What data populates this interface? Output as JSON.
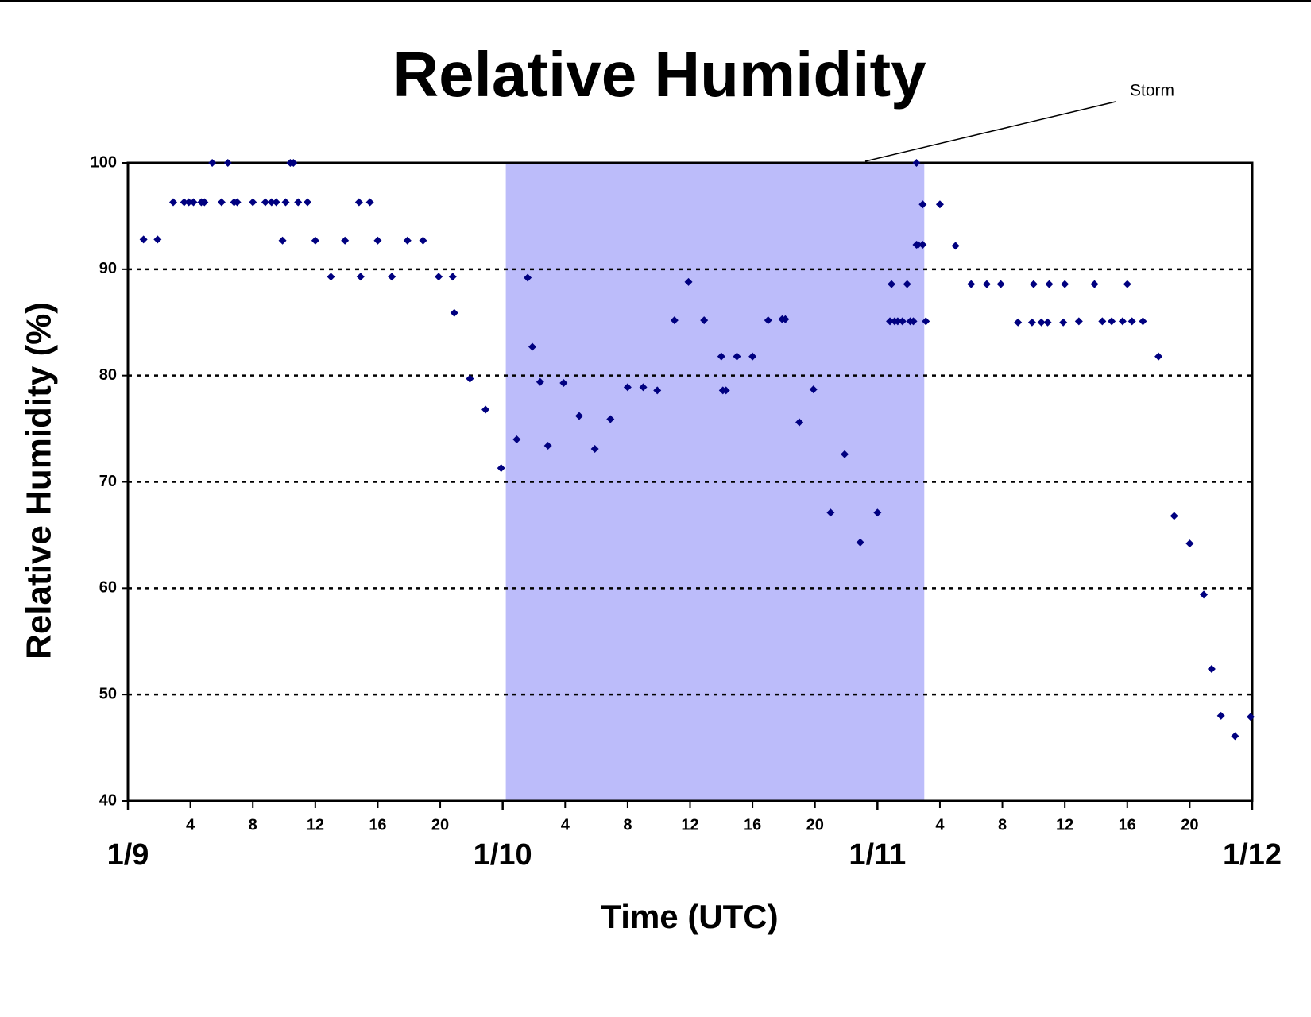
{
  "chart_data": {
    "type": "scatter",
    "title": "Relative Humidity",
    "xlabel": "Time (UTC)",
    "ylabel": "Relative Humidity (%)",
    "annotation": "Storm",
    "shaded_xlim": [
      24.2,
      51.0
    ],
    "shade_color": "#bcbcfa",
    "grid": true,
    "xlim": [
      0,
      72
    ],
    "ylim": [
      40,
      100
    ],
    "yticks": [
      40,
      50,
      60,
      70,
      80,
      90,
      100
    ],
    "xticks": [
      {
        "value": 4,
        "label": "4"
      },
      {
        "value": 8,
        "label": "8"
      },
      {
        "value": 12,
        "label": "12"
      },
      {
        "value": 16,
        "label": "16"
      },
      {
        "value": 20,
        "label": "20"
      },
      {
        "value": 28,
        "label": "4"
      },
      {
        "value": 32,
        "label": "8"
      },
      {
        "value": 36,
        "label": "12"
      },
      {
        "value": 40,
        "label": "16"
      },
      {
        "value": 44,
        "label": "20"
      },
      {
        "value": 52,
        "label": "4"
      },
      {
        "value": 56,
        "label": "8"
      },
      {
        "value": 60,
        "label": "12"
      },
      {
        "value": 64,
        "label": "16"
      },
      {
        "value": 68,
        "label": "20"
      }
    ],
    "xticks_major": [
      {
        "value": 0,
        "label": "1/9"
      },
      {
        "value": 24,
        "label": "1/10"
      },
      {
        "value": 48,
        "label": "1/11"
      },
      {
        "value": 72,
        "label": "1/12"
      }
    ],
    "series": [
      {
        "color": "#000080",
        "x": [
          1.0,
          1.9,
          2.9,
          3.6,
          3.9,
          4.2,
          4.7,
          4.9,
          5.4,
          6.0,
          6.4,
          6.8,
          7.0,
          8.0,
          8.8,
          9.2,
          9.5,
          9.9,
          10.1,
          10.4,
          10.6,
          10.9,
          11.5,
          12.0,
          13.0,
          13.9,
          14.8,
          14.9,
          15.5,
          16.0,
          16.9,
          17.9,
          18.9,
          19.9,
          20.8,
          20.9,
          21.9,
          22.9,
          23.9,
          24.9,
          25.6,
          25.9,
          26.4,
          26.9,
          27.9,
          28.9,
          29.9,
          30.9,
          32.0,
          33.0,
          33.9,
          35.0,
          35.9,
          36.9,
          38.0,
          38.1,
          38.3,
          39.0,
          40.0,
          41.0,
          41.9,
          42.1,
          43.0,
          43.9,
          45.0,
          45.9,
          46.9,
          48.0,
          48.9,
          48.8,
          49.1,
          49.3,
          49.6,
          49.9,
          50.1,
          50.3,
          50.5,
          50.5,
          50.6,
          50.9,
          50.9,
          51.1,
          52.0,
          53.0,
          54.0,
          55.0,
          55.9,
          57.0,
          58.0,
          57.9,
          58.5,
          58.9,
          59.0,
          60.0,
          59.9,
          60.9,
          61.9,
          62.4,
          63.0,
          63.7,
          64.0,
          64.3,
          65.0,
          66.0,
          67.0,
          68.0,
          68.9,
          69.4,
          70.0,
          70.9,
          71.9
        ],
        "values": [
          92.8,
          92.8,
          96.3,
          96.3,
          96.3,
          96.3,
          96.3,
          96.3,
          100,
          96.3,
          100,
          96.3,
          96.3,
          96.3,
          96.3,
          96.3,
          96.3,
          92.7,
          96.3,
          100,
          100,
          96.3,
          96.3,
          92.7,
          89.3,
          92.7,
          96.3,
          89.3,
          96.3,
          92.7,
          89.3,
          92.7,
          92.7,
          89.3,
          89.3,
          85.9,
          79.7,
          76.8,
          71.3,
          74.0,
          89.2,
          82.7,
          79.4,
          73.4,
          79.3,
          76.2,
          73.1,
          75.9,
          78.9,
          78.9,
          78.6,
          85.2,
          88.8,
          85.2,
          81.8,
          78.6,
          78.6,
          81.8,
          81.8,
          85.2,
          85.3,
          85.3,
          75.6,
          78.7,
          67.1,
          72.6,
          64.3,
          67.1,
          88.6,
          85.1,
          85.1,
          85.1,
          85.1,
          88.6,
          85.1,
          85.1,
          100,
          92.3,
          92.3,
          92.3,
          96.1,
          85.1,
          96.1,
          92.2,
          88.6,
          88.6,
          88.6,
          85.0,
          88.6,
          85.0,
          85.0,
          85.0,
          88.6,
          88.6,
          85.0,
          85.1,
          88.6,
          85.1,
          85.1,
          85.1,
          88.6,
          85.1,
          85.1,
          81.8,
          66.8,
          64.2,
          59.4,
          52.4,
          48.0,
          46.1,
          47.9
        ]
      }
    ]
  }
}
